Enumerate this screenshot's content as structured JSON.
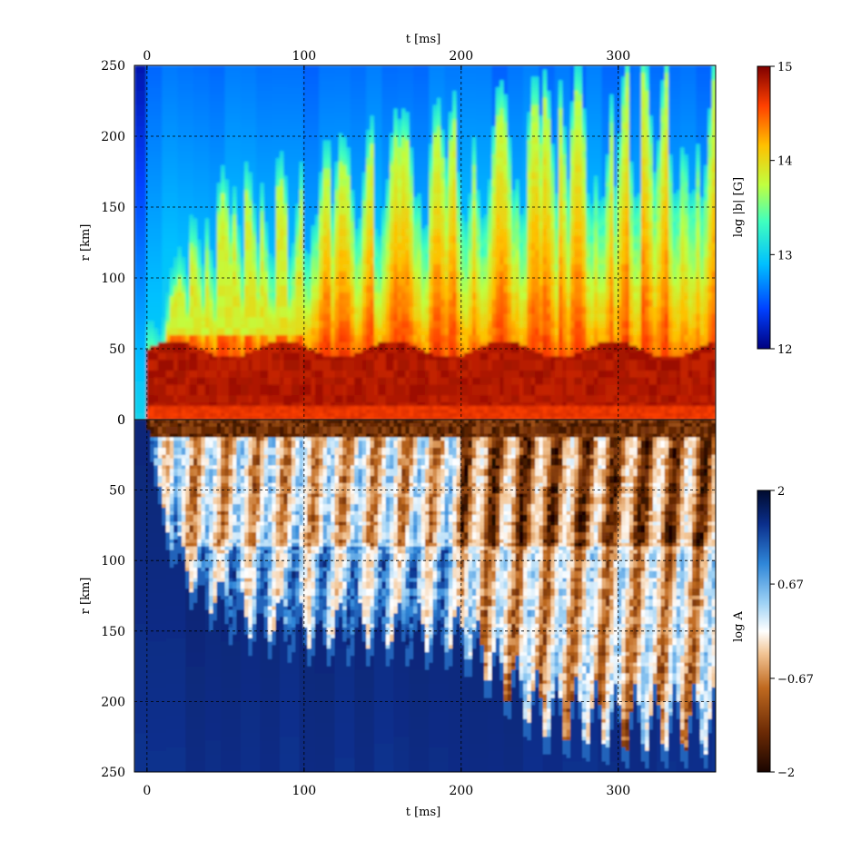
{
  "chart_data": [
    {
      "type": "heatmap",
      "panel": "top",
      "xlabel": "t [ms]",
      "ylabel": "r [km]",
      "xlim": [
        -8,
        362
      ],
      "ylim": [
        0,
        250
      ],
      "x_ticks": [
        "0",
        "100",
        "200",
        "300"
      ],
      "y_ticks": [
        "0",
        "50",
        "100",
        "150",
        "200",
        "250"
      ],
      "grid": true,
      "colorbar": {
        "label": "log |b| [G]",
        "range": [
          12,
          15
        ],
        "ticks": [
          "12",
          "13",
          "14",
          "15"
        ],
        "colormap": [
          "#00007f",
          "#0040ff",
          "#00c0ff",
          "#40ffbf",
          "#c0ff40",
          "#ffc000",
          "#ff4000",
          "#7f0000"
        ]
      },
      "features": {
        "strong_field_band_km": [
          5,
          55
        ],
        "plume_tops_km": [
          140,
          160,
          175,
          200,
          215,
          230,
          245,
          250
        ],
        "background_field": "low"
      }
    },
    {
      "type": "heatmap",
      "panel": "bottom",
      "xlabel": "t [ms]",
      "ylabel": "r [km]",
      "xlim": [
        -8,
        362
      ],
      "ylim": [
        0,
        250
      ],
      "x_ticks": [
        "0",
        "100",
        "200",
        "300"
      ],
      "y_ticks": [
        "0",
        "50",
        "100",
        "150",
        "200",
        "250"
      ],
      "grid": true,
      "colorbar": {
        "label": "log A",
        "range": [
          -2,
          2
        ],
        "ticks": [
          "2",
          "0.67",
          "−0.67",
          "−2"
        ],
        "colormap": [
          "#1a0500",
          "#6b2a05",
          "#c06a20",
          "#f2c494",
          "#ffffff",
          "#9ed2f5",
          "#2f86d8",
          "#0b2f8c",
          "#000a2e"
        ]
      },
      "features": {
        "shock_radius_km": [
          [
            0,
            0
          ],
          [
            10,
            90
          ],
          [
            30,
            140
          ],
          [
            60,
            165
          ],
          [
            100,
            175
          ],
          [
            150,
            175
          ],
          [
            200,
            180
          ],
          [
            250,
            240
          ],
          [
            300,
            250
          ],
          [
            360,
            250
          ]
        ],
        "background_field": "high"
      }
    }
  ]
}
